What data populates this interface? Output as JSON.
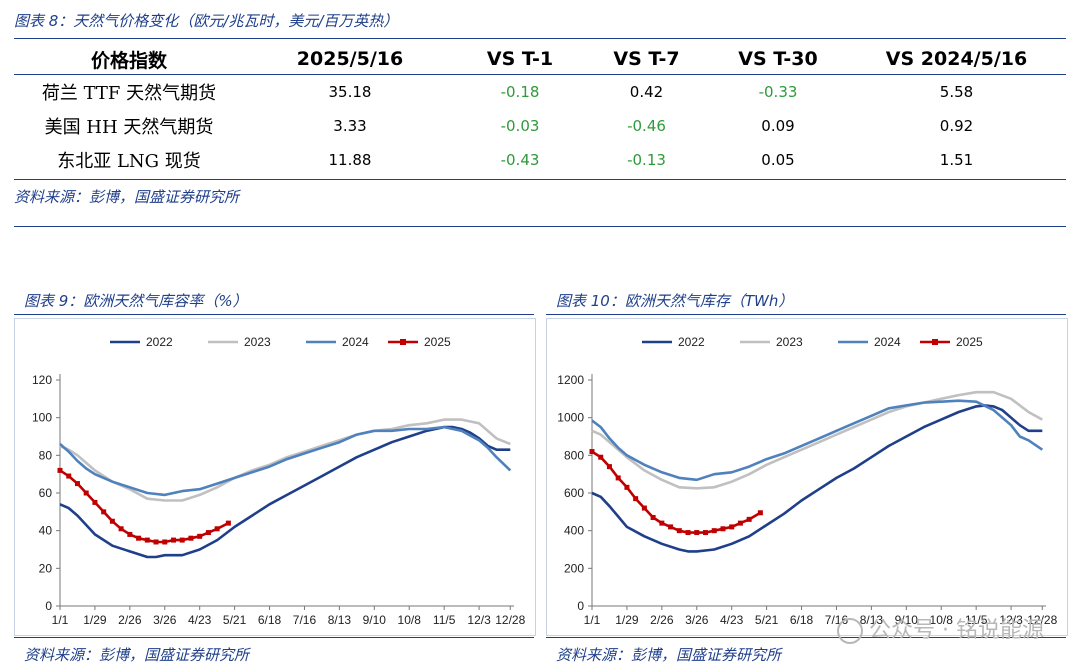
{
  "table_section": {
    "caption": "图表 8：天然气价格变化（欧元/兆瓦时，美元/百万英热）",
    "headers": [
      "价格指数",
      "2025/5/16",
      "VS T-1",
      "VS T-7",
      "VS T-30",
      "VS 2024/5/16"
    ],
    "rows": [
      {
        "name": "荷兰 TTF 天然气期货",
        "values": [
          "35.18",
          "-0.18",
          "0.42",
          "-0.33",
          "5.58"
        ]
      },
      {
        "name": "美国 HH 天然气期货",
        "values": [
          "3.33",
          "-0.03",
          "-0.46",
          "0.09",
          "0.92"
        ]
      },
      {
        "name": "东北亚 LNG 现货",
        "values": [
          "11.88",
          "-0.43",
          "-0.13",
          "0.05",
          "1.51"
        ]
      }
    ],
    "negative_color": "#2e9a3a",
    "source": "资料来源：彭博，国盛证券研究所"
  },
  "chart_data": [
    {
      "caption": "图表 9：欧洲天然气库容率（%）",
      "type": "line",
      "title": "",
      "xlabel": "",
      "ylabel": "",
      "ylim": [
        0,
        120
      ],
      "yticks": [
        0,
        20,
        40,
        60,
        80,
        100,
        120
      ],
      "x_tick_labels": [
        "1/1",
        "1/29",
        "2/26",
        "3/26",
        "4/23",
        "5/21",
        "6/18",
        "7/16",
        "8/13",
        "9/10",
        "10/8",
        "11/5",
        "12/3",
        "12/28"
      ],
      "x_days": [
        0,
        28,
        56,
        84,
        112,
        140,
        168,
        196,
        224,
        252,
        280,
        308,
        336,
        361
      ],
      "legend_position": "top",
      "grid": false,
      "series": [
        {
          "name": "2022",
          "color": "#1f3f8a",
          "markers": false,
          "x": [
            0,
            7,
            14,
            21,
            28,
            42,
            56,
            70,
            77,
            84,
            98,
            112,
            126,
            140,
            154,
            168,
            182,
            196,
            210,
            224,
            238,
            252,
            266,
            280,
            294,
            308,
            315,
            322,
            329,
            336,
            343,
            350,
            361
          ],
          "y": [
            54,
            52,
            48,
            43,
            38,
            32,
            29,
            26,
            26,
            27,
            27,
            30,
            35,
            42,
            48,
            54,
            59,
            64,
            69,
            74,
            79,
            83,
            87,
            90,
            93,
            95,
            95,
            94,
            92,
            89,
            85,
            83,
            83
          ]
        },
        {
          "name": "2023",
          "color": "#c0c0c0",
          "markers": false,
          "x": [
            0,
            7,
            14,
            21,
            28,
            42,
            56,
            70,
            84,
            98,
            112,
            126,
            140,
            154,
            168,
            182,
            196,
            210,
            224,
            238,
            252,
            266,
            280,
            294,
            308,
            322,
            336,
            350,
            361
          ],
          "y": [
            85,
            83,
            80,
            76,
            72,
            66,
            62,
            57,
            56,
            56,
            59,
            63,
            68,
            72,
            75,
            79,
            82,
            85,
            88,
            91,
            93,
            94,
            96,
            97,
            99,
            99,
            97,
            89,
            86
          ]
        },
        {
          "name": "2024",
          "color": "#4f81bd",
          "markers": false,
          "x": [
            0,
            7,
            14,
            21,
            28,
            42,
            56,
            70,
            84,
            98,
            112,
            126,
            140,
            154,
            168,
            182,
            196,
            210,
            224,
            238,
            252,
            266,
            280,
            294,
            308,
            322,
            336,
            343,
            350,
            361
          ],
          "y": [
            86,
            82,
            77,
            73,
            70,
            66,
            63,
            60,
            59,
            61,
            62,
            65,
            68,
            71,
            74,
            78,
            81,
            84,
            87,
            91,
            93,
            93,
            94,
            94,
            95,
            93,
            88,
            84,
            79,
            72
          ]
        },
        {
          "name": "2025",
          "color": "#c00000",
          "markers": true,
          "x": [
            0,
            7,
            14,
            21,
            28,
            35,
            42,
            49,
            56,
            63,
            70,
            77,
            84,
            91,
            98,
            105,
            112,
            119,
            126,
            135
          ],
          "y": [
            72,
            69,
            65,
            60,
            55,
            50,
            45,
            41,
            38,
            36,
            35,
            34,
            34,
            35,
            35,
            36,
            37,
            39,
            41,
            44
          ]
        }
      ]
    },
    {
      "caption": "图表 10：欧洲天然气库存（TWh）",
      "type": "line",
      "title": "",
      "xlabel": "",
      "ylabel": "",
      "ylim": [
        0,
        1200
      ],
      "yticks": [
        0,
        200,
        400,
        600,
        800,
        1000,
        1200
      ],
      "x_tick_labels": [
        "1/1",
        "1/29",
        "2/26",
        "3/26",
        "4/23",
        "5/21",
        "6/18",
        "7/16",
        "8/13",
        "9/10",
        "10/8",
        "11/5",
        "12/3",
        "12/28"
      ],
      "x_days": [
        0,
        28,
        56,
        84,
        112,
        140,
        168,
        196,
        224,
        252,
        280,
        308,
        336,
        361
      ],
      "legend_position": "top",
      "grid": false,
      "series": [
        {
          "name": "2022",
          "color": "#1f3f8a",
          "markers": false,
          "x": [
            0,
            7,
            14,
            21,
            28,
            42,
            56,
            70,
            77,
            84,
            98,
            112,
            126,
            140,
            154,
            168,
            182,
            196,
            210,
            224,
            238,
            252,
            266,
            280,
            294,
            308,
            315,
            322,
            329,
            336,
            343,
            350,
            361
          ],
          "y": [
            600,
            580,
            530,
            475,
            420,
            370,
            330,
            300,
            290,
            290,
            300,
            330,
            370,
            430,
            490,
            560,
            620,
            680,
            730,
            790,
            850,
            900,
            950,
            990,
            1030,
            1060,
            1065,
            1060,
            1040,
            1000,
            960,
            930,
            930
          ]
        },
        {
          "name": "2023",
          "color": "#c0c0c0",
          "markers": false,
          "x": [
            0,
            7,
            14,
            21,
            28,
            42,
            56,
            70,
            84,
            98,
            112,
            126,
            140,
            154,
            168,
            182,
            196,
            210,
            224,
            238,
            252,
            266,
            280,
            294,
            308,
            322,
            336,
            350,
            361
          ],
          "y": [
            930,
            910,
            870,
            830,
            790,
            720,
            670,
            630,
            625,
            630,
            660,
            700,
            750,
            790,
            830,
            870,
            910,
            950,
            990,
            1030,
            1060,
            1080,
            1100,
            1120,
            1135,
            1135,
            1100,
            1030,
            990
          ]
        },
        {
          "name": "2024",
          "color": "#4f81bd",
          "markers": false,
          "x": [
            0,
            7,
            14,
            21,
            28,
            42,
            56,
            70,
            84,
            98,
            112,
            126,
            140,
            154,
            168,
            182,
            196,
            210,
            224,
            238,
            252,
            266,
            280,
            294,
            308,
            322,
            336,
            343,
            350,
            361
          ],
          "y": [
            985,
            950,
            890,
            840,
            800,
            750,
            710,
            680,
            670,
            700,
            710,
            740,
            780,
            810,
            850,
            890,
            930,
            970,
            1010,
            1050,
            1065,
            1080,
            1085,
            1090,
            1085,
            1040,
            960,
            900,
            880,
            830
          ]
        },
        {
          "name": "2025",
          "color": "#c00000",
          "markers": true,
          "x": [
            0,
            7,
            14,
            21,
            28,
            35,
            42,
            49,
            56,
            63,
            70,
            77,
            84,
            91,
            98,
            105,
            112,
            119,
            126,
            135
          ],
          "y": [
            820,
            790,
            740,
            680,
            630,
            570,
            520,
            470,
            440,
            420,
            400,
            390,
            390,
            390,
            400,
            410,
            420,
            440,
            460,
            495
          ]
        }
      ]
    }
  ],
  "chart_source": "资料来源：彭博，国盛证券研究所",
  "watermark": "公众号 · 铭说能源"
}
